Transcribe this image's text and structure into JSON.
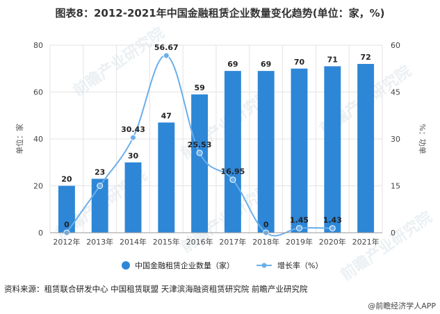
{
  "title": "图表8：2012-2021年中国金融租赁企业数量变化趋势(单位：家，%)",
  "source": "资料来源：租赁联合研发中心 中国租赁联盟 天津滨海融资租赁研究院 前瞻产业研究院",
  "credit": "@前瞻经济学人APP",
  "watermark": "前瞻产业研究院",
  "chart_data": {
    "type": "bar",
    "title": "图表8：2012-2021年中国金融租赁企业数量变化趋势(单位：家，%)",
    "categories": [
      "2012年",
      "2013年",
      "2014年",
      "2015年",
      "2016年",
      "2017年",
      "2018年",
      "2019年",
      "2020年",
      "2021年"
    ],
    "ylabel_left": "单位：家",
    "ylabel_right": "%：功单",
    "ylim_left": [
      0,
      80
    ],
    "yticks_left": [
      "0",
      "20",
      "40",
      "60",
      "80"
    ],
    "ylim_right": [
      0,
      60
    ],
    "yticks_right": [
      "0",
      "15",
      "30",
      "45",
      "60"
    ],
    "grid": true,
    "legend_position": "bottom",
    "series": [
      {
        "name": "中国金融租赁企业数量（家）",
        "type": "bar",
        "axis": "left",
        "color": "#2e86d6",
        "values": [
          20,
          23,
          30,
          47,
          59,
          69,
          69,
          70,
          71,
          72
        ],
        "labels": [
          "20",
          "23",
          "30",
          "47",
          "59",
          "69",
          "69",
          "70",
          "71",
          "72"
        ]
      },
      {
        "name": "增长率（%）",
        "type": "line",
        "axis": "right",
        "color": "#6aaeea",
        "values": [
          0,
          15,
          30.43,
          56.67,
          25.53,
          16.95,
          0,
          1.45,
          1.43,
          null
        ],
        "labels": [
          "0",
          "",
          "30.43",
          "56.67",
          "25.53",
          "16.95",
          "0",
          "1.45",
          "1.43",
          ""
        ]
      }
    ]
  }
}
